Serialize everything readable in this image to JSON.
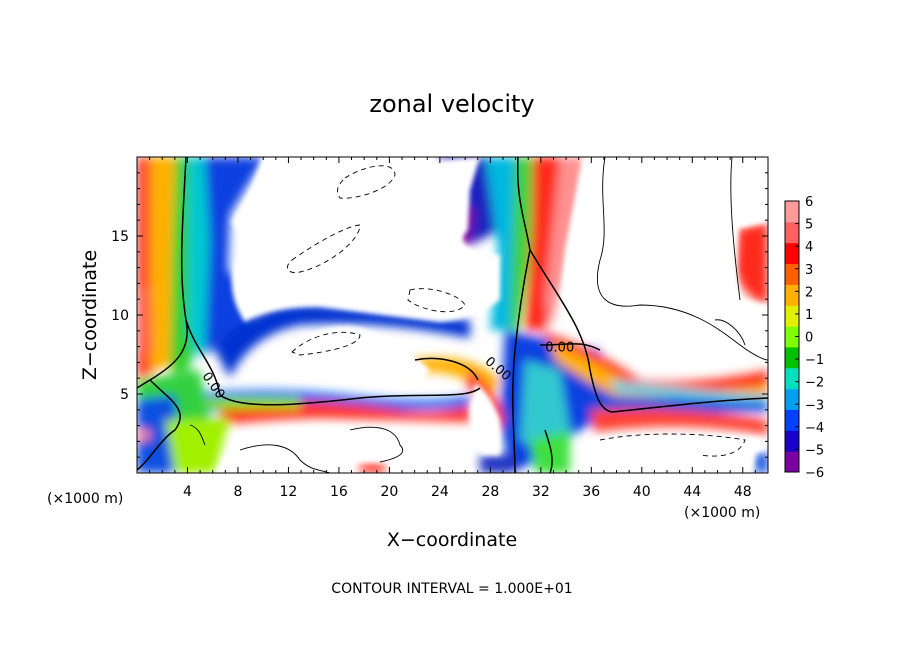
{
  "chart_data": {
    "type": "heatmap",
    "title": "zonal velocity",
    "xlabel": "X−coordinate",
    "ylabel": "Z−coordinate",
    "x_unit_left": "(×1000 m)",
    "x_unit_right": "(×1000 m)",
    "xlim": [
      0,
      50
    ],
    "ylim": [
      0,
      20
    ],
    "x_ticks": [
      4,
      8,
      12,
      16,
      20,
      24,
      28,
      32,
      36,
      40,
      44,
      48
    ],
    "x_tick_labels": [
      "4",
      "8",
      "12",
      "16",
      "20",
      "24",
      "28",
      "32",
      "36",
      "40",
      "44",
      "48"
    ],
    "y_ticks": [
      5,
      10,
      15
    ],
    "y_tick_labels": [
      "5",
      "10",
      "15"
    ],
    "colorbar": {
      "min": -6,
      "max": 6,
      "tick_values": [
        6,
        5,
        4,
        3,
        2,
        1,
        0,
        -1,
        -2,
        -3,
        -4,
        -5,
        -6
      ],
      "tick_labels": [
        "6",
        "5",
        "4",
        "3",
        "2",
        "1",
        "0",
        "−1",
        "−2",
        "−3",
        "−4",
        "−5",
        "−6"
      ],
      "colors": [
        "#7a00a0",
        "#1a00c8",
        "#0040ff",
        "#00a0f0",
        "#00e0c0",
        "#00c000",
        "#80ff00",
        "#e0f000",
        "#ffb000",
        "#ff6000",
        "#ff0000",
        "#ff6060",
        "#ff9a9a"
      ]
    },
    "contour_labels": [
      {
        "text": "0.00",
        "x": 5.8,
        "z": 5.4,
        "angle": 55
      },
      {
        "text": "0.00",
        "x": 28.4,
        "z": 6.4,
        "angle": 40
      },
      {
        "text": "0.00",
        "x": 33.5,
        "z": 7.7,
        "angle": 0
      }
    ],
    "contour_interval": "CONTOUR INTERVAL = 1.000E+01"
  }
}
